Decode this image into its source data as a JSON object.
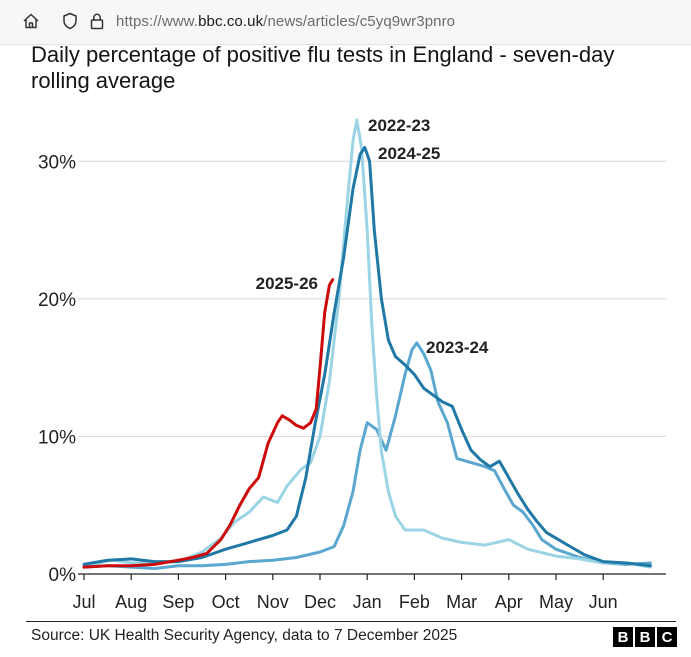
{
  "browser": {
    "url_prefix": "https://www.",
    "url_domain": "bbc.co.uk",
    "url_path": "/news/articles/c5yq9wr3pnro"
  },
  "article": {
    "chart_title": "Daily percentage of positive flu tests in England - seven-day rolling average",
    "source": "Source: UK Health Security Agency, data to 7 December 2025",
    "brand_letters": [
      "B",
      "B",
      "C"
    ]
  },
  "chart_data": {
    "type": "line",
    "title": "Daily percentage of positive flu tests in England - seven-day rolling average",
    "x_tick_labels": [
      "Jul",
      "Aug",
      "Sep",
      "Oct",
      "Nov",
      "Dec",
      "Jan",
      "Feb",
      "Mar",
      "Apr",
      "May",
      "Jun"
    ],
    "y_tick_labels": [
      "0%",
      "10%",
      "20%",
      "30%"
    ],
    "y_ticks": [
      0,
      10,
      20,
      30
    ],
    "ylim": [
      0,
      33
    ],
    "x_unit": "month index from 1 July (0 = Jul ... 11 = Jun)",
    "xlim": [
      0,
      12
    ],
    "grid": true,
    "series": [
      {
        "name": "2022-23",
        "color": "#9bd4e4",
        "points": [
          [
            0,
            0.5
          ],
          [
            0.3,
            0.8
          ],
          [
            0.6,
            1.0
          ],
          [
            1,
            0.8
          ],
          [
            1.5,
            0.8
          ],
          [
            2,
            0.9
          ],
          [
            2.5,
            1.6
          ],
          [
            2.9,
            2.6
          ],
          [
            3.2,
            3.8
          ],
          [
            3.5,
            4.5
          ],
          [
            3.8,
            5.6
          ],
          [
            4.1,
            5.2
          ],
          [
            4.3,
            6.4
          ],
          [
            4.6,
            7.6
          ],
          [
            4.8,
            8.1
          ],
          [
            5.0,
            10.0
          ],
          [
            5.2,
            14.0
          ],
          [
            5.4,
            20.0
          ],
          [
            5.55,
            26.0
          ],
          [
            5.7,
            31.5
          ],
          [
            5.78,
            33.0
          ],
          [
            5.88,
            31.0
          ],
          [
            6.0,
            25.0
          ],
          [
            6.1,
            18.0
          ],
          [
            6.2,
            13.0
          ],
          [
            6.3,
            8.9
          ],
          [
            6.45,
            6.0
          ],
          [
            6.6,
            4.2
          ],
          [
            6.8,
            3.2
          ],
          [
            7.2,
            3.2
          ],
          [
            7.6,
            2.6
          ],
          [
            8.0,
            2.3
          ],
          [
            8.5,
            2.1
          ],
          [
            9.0,
            2.5
          ],
          [
            9.4,
            1.8
          ],
          [
            10,
            1.3
          ],
          [
            10.5,
            1.1
          ],
          [
            11,
            0.8
          ],
          [
            11.5,
            0.8
          ],
          [
            12,
            0.5
          ]
        ]
      },
      {
        "name": "2023-24",
        "color": "#5aa7cf",
        "points": [
          [
            0,
            0.5
          ],
          [
            0.5,
            0.6
          ],
          [
            1,
            0.5
          ],
          [
            1.5,
            0.4
          ],
          [
            2,
            0.6
          ],
          [
            2.5,
            0.6
          ],
          [
            3,
            0.7
          ],
          [
            3.5,
            0.9
          ],
          [
            4,
            1.0
          ],
          [
            4.5,
            1.2
          ],
          [
            5,
            1.6
          ],
          [
            5.3,
            2.0
          ],
          [
            5.5,
            3.5
          ],
          [
            5.7,
            6.0
          ],
          [
            5.85,
            9.0
          ],
          [
            6.0,
            11.0
          ],
          [
            6.2,
            10.5
          ],
          [
            6.4,
            9.0
          ],
          [
            6.6,
            11.5
          ],
          [
            6.8,
            14.5
          ],
          [
            6.95,
            16.3
          ],
          [
            7.05,
            16.8
          ],
          [
            7.2,
            16.0
          ],
          [
            7.35,
            14.8
          ],
          [
            7.5,
            12.5
          ],
          [
            7.7,
            11.0
          ],
          [
            7.9,
            8.4
          ],
          [
            8.1,
            8.2
          ],
          [
            8.3,
            8.0
          ],
          [
            8.5,
            7.8
          ],
          [
            8.7,
            7.5
          ],
          [
            8.9,
            6.2
          ],
          [
            9.1,
            5.0
          ],
          [
            9.3,
            4.5
          ],
          [
            9.5,
            3.6
          ],
          [
            9.7,
            2.5
          ],
          [
            10,
            1.8
          ],
          [
            10.5,
            1.2
          ],
          [
            11,
            0.8
          ],
          [
            11.5,
            0.7
          ],
          [
            12,
            0.8
          ]
        ]
      },
      {
        "name": "2024-25",
        "color": "#1f78a5",
        "points": [
          [
            0,
            0.7
          ],
          [
            0.5,
            1.0
          ],
          [
            1,
            1.1
          ],
          [
            1.5,
            0.9
          ],
          [
            2,
            0.9
          ],
          [
            2.5,
            1.2
          ],
          [
            3,
            1.8
          ],
          [
            3.5,
            2.3
          ],
          [
            4,
            2.8
          ],
          [
            4.3,
            3.2
          ],
          [
            4.5,
            4.2
          ],
          [
            4.7,
            7.0
          ],
          [
            4.9,
            11.0
          ],
          [
            5.1,
            14.5
          ],
          [
            5.3,
            19.0
          ],
          [
            5.5,
            23.0
          ],
          [
            5.7,
            28.0
          ],
          [
            5.85,
            30.5
          ],
          [
            5.95,
            31.0
          ],
          [
            6.05,
            30.0
          ],
          [
            6.15,
            25.0
          ],
          [
            6.3,
            20.0
          ],
          [
            6.45,
            17.0
          ],
          [
            6.6,
            15.8
          ],
          [
            6.8,
            15.2
          ],
          [
            7.0,
            14.5
          ],
          [
            7.2,
            13.5
          ],
          [
            7.4,
            13.0
          ],
          [
            7.6,
            12.5
          ],
          [
            7.8,
            12.2
          ],
          [
            8.0,
            10.5
          ],
          [
            8.2,
            9.0
          ],
          [
            8.4,
            8.3
          ],
          [
            8.6,
            7.8
          ],
          [
            8.8,
            8.2
          ],
          [
            9.0,
            7.0
          ],
          [
            9.2,
            5.8
          ],
          [
            9.4,
            4.7
          ],
          [
            9.6,
            3.8
          ],
          [
            9.8,
            3.0
          ],
          [
            10,
            2.6
          ],
          [
            10.3,
            2.0
          ],
          [
            10.6,
            1.4
          ],
          [
            11,
            0.9
          ],
          [
            11.5,
            0.8
          ],
          [
            12,
            0.6
          ]
        ]
      },
      {
        "name": "2025-26",
        "color": "#cc0a0a",
        "points": [
          [
            0,
            0.5
          ],
          [
            0.5,
            0.6
          ],
          [
            1,
            0.6
          ],
          [
            1.5,
            0.7
          ],
          [
            2,
            1.0
          ],
          [
            2.3,
            1.2
          ],
          [
            2.6,
            1.5
          ],
          [
            2.9,
            2.5
          ],
          [
            3.1,
            3.6
          ],
          [
            3.3,
            5.0
          ],
          [
            3.5,
            6.2
          ],
          [
            3.7,
            7.0
          ],
          [
            3.9,
            9.5
          ],
          [
            4.1,
            11.0
          ],
          [
            4.2,
            11.5
          ],
          [
            4.35,
            11.2
          ],
          [
            4.5,
            10.8
          ],
          [
            4.65,
            10.6
          ],
          [
            4.8,
            11.0
          ],
          [
            4.92,
            12.0
          ],
          [
            5.0,
            15.0
          ],
          [
            5.1,
            19.0
          ],
          [
            5.2,
            21.0
          ],
          [
            5.27,
            21.4
          ]
        ]
      }
    ],
    "annotations": [
      {
        "text": "2022-23",
        "series": "2022-23"
      },
      {
        "text": "2024-25",
        "series": "2024-25"
      },
      {
        "text": "2023-24",
        "series": "2023-24"
      },
      {
        "text": "2025-26",
        "series": "2025-26"
      }
    ]
  }
}
